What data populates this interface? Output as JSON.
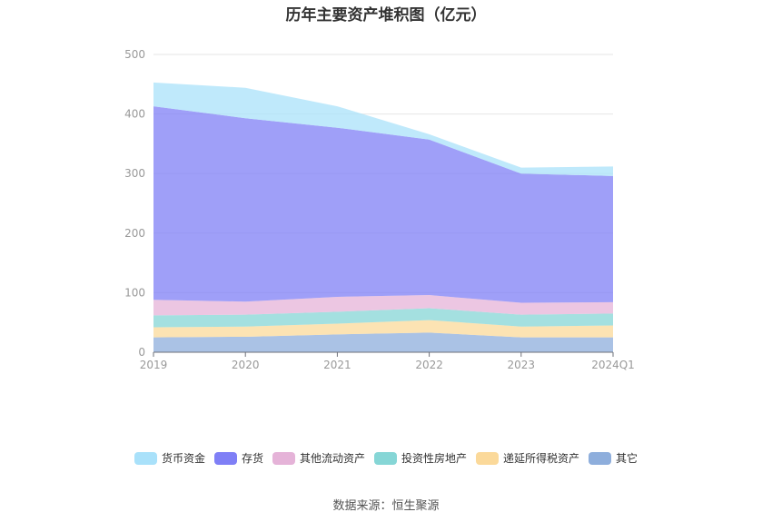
{
  "chart_data": {
    "type": "area",
    "stacked": true,
    "title": "历年主要资产堆积图（亿元）",
    "categories": [
      "2019",
      "2020",
      "2021",
      "2022",
      "2023",
      "2024Q1"
    ],
    "ylim": [
      0,
      500
    ],
    "yticks": [
      0,
      100,
      200,
      300,
      400,
      500
    ],
    "grid": true,
    "legend_position": "bottom",
    "series": [
      {
        "name": "其它",
        "color": "#8eaedc",
        "values": [
          25,
          26,
          30,
          33,
          25,
          25
        ]
      },
      {
        "name": "递延所得税资产",
        "color": "#fbd99a",
        "values": [
          17,
          17,
          18,
          21,
          18,
          20
        ]
      },
      {
        "name": "投资性房地产",
        "color": "#86d6d6",
        "values": [
          20,
          20,
          20,
          20,
          20,
          20
        ]
      },
      {
        "name": "其他流动资产",
        "color": "#e5b3d8",
        "values": [
          26,
          22,
          25,
          22,
          20,
          19
        ]
      },
      {
        "name": "存货",
        "color": "#7f7ff6",
        "values": [
          325,
          308,
          284,
          261,
          217,
          212
        ]
      },
      {
        "name": "货币资金",
        "color": "#a9e1fa",
        "values": [
          40,
          51,
          36,
          9,
          10,
          16
        ]
      }
    ],
    "legend_order": [
      "货币资金",
      "存货",
      "其他流动资产",
      "投资性房地产",
      "递延所得税资产",
      "其它"
    ]
  },
  "source": "数据来源：恒生聚源"
}
